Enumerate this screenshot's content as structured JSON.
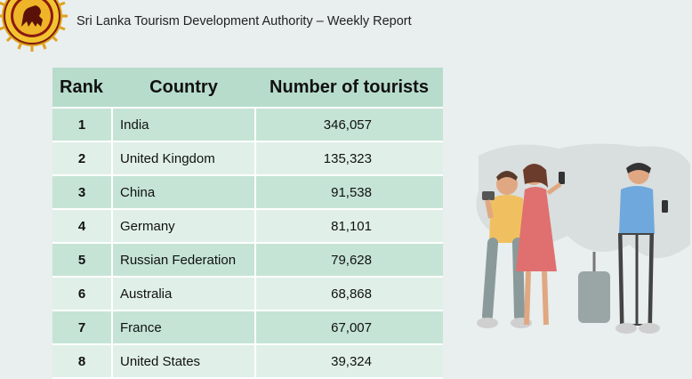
{
  "header": {
    "title": "Sri Lanka Tourism Development Authority – Weekly Report",
    "seal_icon": "sri-lanka-lion-seal-icon"
  },
  "table": {
    "headers": {
      "rank": "Rank",
      "country": "Country",
      "tourists": "Number of tourists"
    },
    "rows": [
      {
        "rank": "1",
        "country": "India",
        "tourists": "346,057"
      },
      {
        "rank": "2",
        "country": "United Kingdom",
        "tourists": "135,323"
      },
      {
        "rank": "3",
        "country": "China",
        "tourists": "91,538"
      },
      {
        "rank": "4",
        "country": "Germany",
        "tourists": "81,101"
      },
      {
        "rank": "5",
        "country": "Russian Federation",
        "tourists": "79,628"
      },
      {
        "rank": "6",
        "country": "Australia",
        "tourists": "68,868"
      },
      {
        "rank": "7",
        "country": "France",
        "tourists": "67,007"
      },
      {
        "rank": "8",
        "country": "United States",
        "tourists": "39,324"
      }
    ]
  },
  "illustration": {
    "icon": "tourists-with-luggage-icon"
  },
  "colors": {
    "header_row": "#b7dccc",
    "odd_row": "#c5e4d6",
    "even_row": "#e0f0e8",
    "background": "#e9eeee"
  }
}
